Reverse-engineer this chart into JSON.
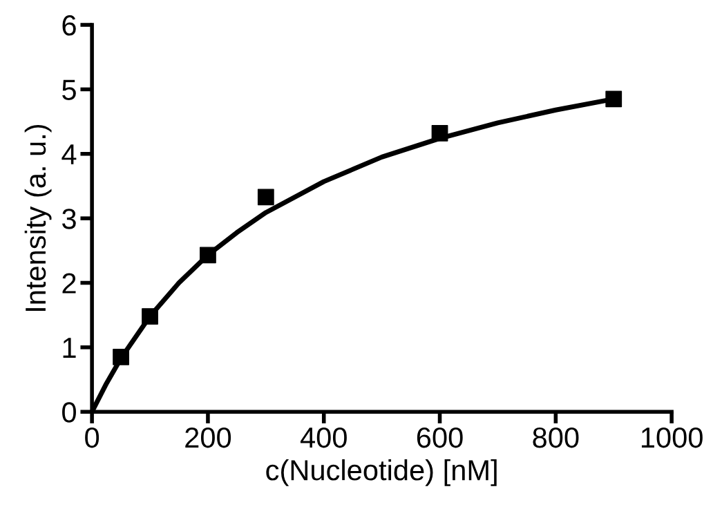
{
  "chart_data": {
    "type": "scatter",
    "xlabel": "c(Nucleotide) [nM]",
    "ylabel": "Intensity (a. u.)",
    "xlim": [
      0,
      1000
    ],
    "xticks": [
      0,
      200,
      400,
      600,
      800,
      1000
    ],
    "ylim": [
      0,
      6
    ],
    "yticks": [
      0,
      1,
      2,
      3,
      4,
      5,
      6
    ],
    "grid": false,
    "legend": false,
    "series": [
      {
        "color": "#000000",
        "marker": "square",
        "x": [
          50,
          100,
          200,
          300,
          600,
          900
        ],
        "values": [
          0.85,
          1.48,
          2.43,
          3.33,
          4.32,
          4.85
        ]
      },
      {
        "type": "line",
        "color": "#000000",
        "marker": "none",
        "line_style": "solid",
        "x": [
          0,
          25,
          50,
          100,
          150,
          200,
          250,
          300,
          400,
          500,
          600,
          700,
          800,
          900
        ],
        "values": [
          0,
          0.44,
          0.83,
          1.48,
          2.0,
          2.43,
          2.78,
          3.09,
          3.57,
          3.95,
          4.24,
          4.48,
          4.68,
          4.85
        ]
      }
    ]
  }
}
